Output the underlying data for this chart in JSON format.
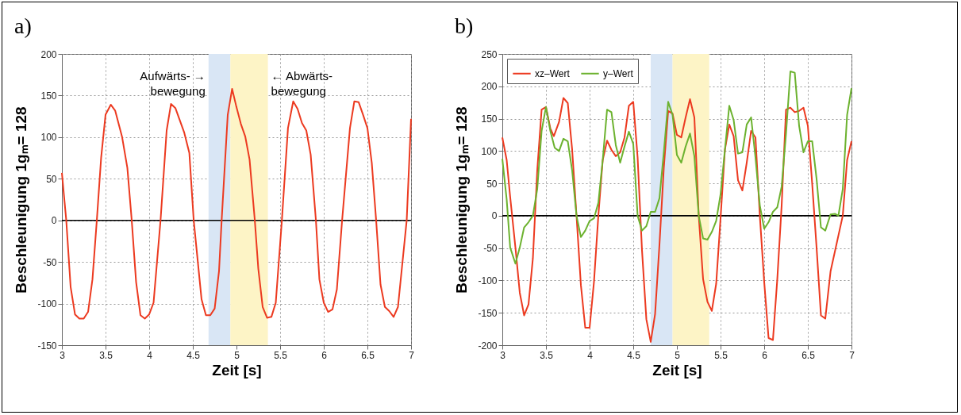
{
  "chart_data": [
    {
      "type": "line",
      "title": "a)",
      "xlabel": "Zeit [s]",
      "ylabel": "Beschleunigung  1gₘ= 128",
      "xlim": [
        3,
        7
      ],
      "xticks": [
        3,
        3.5,
        4,
        4.5,
        5,
        5.5,
        6,
        6.5,
        7
      ],
      "ylim": [
        -150,
        200
      ],
      "yticks": [
        -150,
        -100,
        -50,
        0,
        50,
        100,
        150,
        200
      ],
      "grid": true,
      "series": [
        {
          "color": "#ec3a20",
          "x": [
            3.0,
            3.05,
            3.1,
            3.15,
            3.2,
            3.25,
            3.3,
            3.35,
            3.4,
            3.45,
            3.5,
            3.56,
            3.61,
            3.69,
            3.75,
            3.8,
            3.85,
            3.9,
            3.95,
            4.0,
            4.05,
            4.13,
            4.2,
            4.25,
            4.3,
            4.4,
            4.46,
            4.51,
            4.6,
            4.65,
            4.7,
            4.75,
            4.8,
            4.83,
            4.9,
            4.95,
            5.0,
            5.05,
            5.1,
            5.15,
            5.21,
            5.25,
            5.3,
            5.35,
            5.4,
            5.45,
            5.52,
            5.59,
            5.65,
            5.7,
            5.75,
            5.8,
            5.85,
            5.91,
            5.95,
            6.0,
            6.05,
            6.1,
            6.15,
            6.21,
            6.3,
            6.35,
            6.4,
            6.45,
            6.5,
            6.55,
            6.6,
            6.65,
            6.7,
            6.75,
            6.8,
            6.85,
            6.95,
            7.0
          ],
          "values": [
            57,
            0,
            -80,
            -113,
            -118,
            -118,
            -110,
            -71,
            0,
            76,
            127,
            139,
            132,
            100,
            63,
            0,
            -74,
            -114,
            -118,
            -113,
            -99,
            0,
            108,
            140,
            135,
            106,
            81,
            0,
            -95,
            -114,
            -114,
            -106,
            -61,
            0,
            127,
            158,
            136,
            116,
            101,
            73,
            0,
            -58,
            -104,
            -117,
            -116,
            -99,
            0,
            111,
            143,
            134,
            117,
            108,
            79,
            0,
            -71,
            -99,
            -110,
            -107,
            -83,
            0,
            111,
            143,
            142,
            127,
            111,
            69,
            0,
            -77,
            -104,
            -109,
            -116,
            -104,
            0,
            122
          ]
        }
      ],
      "ref_lines": [
        {
          "axis": "y",
          "value": 0,
          "color": "#000000"
        }
      ],
      "bands": [
        {
          "axis": "x",
          "from": 4.68,
          "to": 4.93,
          "color": "#d9e6f5"
        },
        {
          "axis": "x",
          "from": 4.93,
          "to": 5.36,
          "color": "#fdf4c6"
        }
      ],
      "annotations": [
        "Aufwärts- →\nbewegung",
        "← Abwärts-\nbewegung"
      ]
    },
    {
      "type": "line",
      "title": "b)",
      "xlabel": "Zeit [s]",
      "ylabel": "Beschleunigung  1gₘ= 128",
      "xlim": [
        3,
        7
      ],
      "xticks": [
        3,
        3.5,
        4,
        4.5,
        5,
        5.5,
        6,
        6.5,
        7
      ],
      "ylim": [
        -200,
        250
      ],
      "yticks": [
        -200,
        -150,
        -100,
        -50,
        0,
        50,
        100,
        150,
        200,
        250
      ],
      "grid": true,
      "legend": "top left",
      "series": [
        {
          "name": "xz–Wert",
          "color": "#ec3a20",
          "x": [
            3.0,
            3.05,
            3.09,
            3.15,
            3.2,
            3.25,
            3.3,
            3.35,
            3.4,
            3.45,
            3.5,
            3.55,
            3.59,
            3.65,
            3.7,
            3.75,
            3.8,
            3.85,
            3.9,
            3.95,
            4.0,
            4.05,
            4.1,
            4.15,
            4.2,
            4.25,
            4.3,
            4.35,
            4.4,
            4.45,
            4.5,
            4.55,
            4.6,
            4.65,
            4.7,
            4.75,
            4.8,
            4.85,
            4.9,
            4.95,
            5.0,
            5.05,
            5.1,
            5.15,
            5.2,
            5.25,
            5.3,
            5.35,
            5.4,
            5.45,
            5.5,
            5.55,
            5.6,
            5.65,
            5.7,
            5.75,
            5.8,
            5.85,
            5.9,
            5.95,
            6.0,
            6.05,
            6.1,
            6.15,
            6.2,
            6.25,
            6.3,
            6.35,
            6.4,
            6.45,
            6.5,
            6.55,
            6.6,
            6.65,
            6.7,
            6.76,
            6.9,
            6.95,
            7.0
          ],
          "values": [
            121,
            86,
            29,
            -49,
            -119,
            -154,
            -137,
            -66,
            70,
            164,
            168,
            135,
            123,
            145,
            182,
            174,
            102,
            0,
            -107,
            -173,
            -173,
            -102,
            0,
            86,
            116,
            102,
            92,
            98,
            121,
            170,
            176,
            90,
            -53,
            -160,
            -195,
            -152,
            -45,
            74,
            162,
            158,
            125,
            121,
            152,
            180,
            152,
            0,
            -98,
            -133,
            -147,
            -105,
            -4,
            102,
            141,
            123,
            55,
            39,
            82,
            131,
            121,
            0,
            -102,
            -189,
            -192,
            -98,
            16,
            164,
            167,
            160,
            162,
            167,
            139,
            49,
            -49,
            -154,
            -159,
            -86,
            0,
            86,
            115
          ]
        },
        {
          "name": "y–Wert",
          "color": "#6cb22f",
          "x": [
            3.0,
            3.05,
            3.09,
            3.15,
            3.2,
            3.25,
            3.3,
            3.35,
            3.4,
            3.45,
            3.5,
            3.55,
            3.6,
            3.65,
            3.7,
            3.75,
            3.8,
            3.85,
            3.9,
            3.95,
            4.0,
            4.05,
            4.1,
            4.15,
            4.2,
            4.25,
            4.3,
            4.35,
            4.4,
            4.45,
            4.5,
            4.55,
            4.6,
            4.65,
            4.7,
            4.75,
            4.8,
            4.85,
            4.9,
            4.95,
            5.0,
            5.05,
            5.1,
            5.15,
            5.2,
            5.25,
            5.3,
            5.35,
            5.4,
            5.45,
            5.5,
            5.55,
            5.6,
            5.65,
            5.7,
            5.75,
            5.8,
            5.85,
            5.9,
            5.95,
            6.0,
            6.05,
            6.1,
            6.15,
            6.2,
            6.25,
            6.3,
            6.35,
            6.4,
            6.45,
            6.5,
            6.55,
            6.6,
            6.65,
            6.7,
            6.76,
            6.81,
            6.85,
            6.9,
            6.95,
            7.0
          ],
          "values": [
            88,
            25,
            -49,
            -74,
            -49,
            -18,
            -10,
            0,
            41,
            131,
            168,
            131,
            105,
            100,
            119,
            115,
            70,
            0,
            -33,
            -23,
            -8,
            -4,
            20,
            86,
            164,
            160,
            109,
            82,
            107,
            130,
            111,
            0,
            -23,
            -16,
            6,
            6,
            27,
            98,
            176,
            156,
            94,
            82,
            107,
            127,
            92,
            0,
            -35,
            -37,
            -25,
            -8,
            33,
            102,
            170,
            148,
            96,
            98,
            141,
            152,
            90,
            16,
            -20,
            -10,
            6,
            13,
            45,
            127,
            223,
            221,
            139,
            98,
            115,
            115,
            57,
            -18,
            -23,
            2,
            3,
            0,
            41,
            156,
            197
          ]
        }
      ],
      "ref_lines": [
        {
          "axis": "y",
          "value": 0,
          "color": "#000000"
        }
      ],
      "bands": [
        {
          "axis": "x",
          "from": 4.7,
          "to": 4.95,
          "color": "#d9e6f5"
        },
        {
          "axis": "x",
          "from": 4.95,
          "to": 5.37,
          "color": "#fdf4c6"
        }
      ]
    }
  ]
}
